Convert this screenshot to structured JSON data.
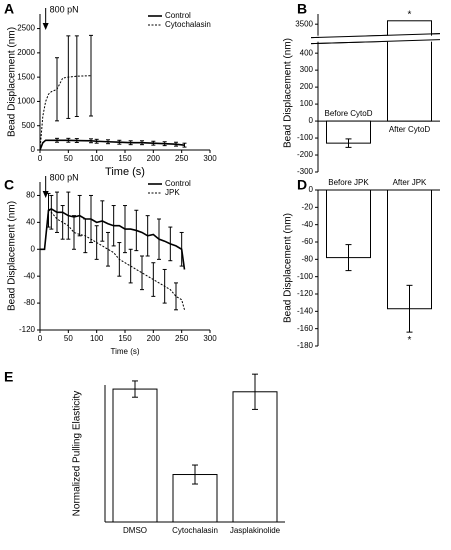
{
  "chart_data": [
    {
      "type": "line",
      "label": "A",
      "xlabel": "Time (s)",
      "ylabel": "Bead Displacement (nm)",
      "x": [
        0,
        5,
        10,
        15,
        20,
        30,
        40,
        50,
        65,
        90,
        100,
        120,
        140,
        160,
        180,
        200,
        220,
        240,
        255
      ],
      "series": [
        {
          "name": "Control",
          "color": "#000000",
          "dash": false,
          "values": [
            0,
            150,
            200,
            200,
            200,
            200,
            200,
            200,
            195,
            190,
            180,
            170,
            160,
            150,
            150,
            140,
            130,
            120,
            100
          ],
          "errors": [
            null,
            null,
            null,
            null,
            null,
            40,
            null,
            40,
            40,
            40,
            40,
            40,
            40,
            40,
            40,
            40,
            40,
            40,
            40
          ]
        },
        {
          "name": "Cytochalasin",
          "color": "#000000",
          "dash": true,
          "values": [
            0,
            700,
            1000,
            1150,
            1200,
            1250,
            1480,
            1500,
            1520,
            1530,
            null,
            null,
            null,
            null,
            null,
            null,
            null,
            null,
            null
          ],
          "errors": [
            null,
            null,
            null,
            null,
            null,
            650,
            null,
            850,
            830,
            830,
            null,
            null,
            null,
            null,
            null,
            null,
            null,
            null,
            null
          ]
        }
      ],
      "xlim": [
        0,
        300
      ],
      "xticks": [
        0,
        50,
        100,
        150,
        200,
        250,
        300
      ],
      "ylim": [
        0,
        2800
      ],
      "yticks": [
        0,
        500,
        1000,
        1500,
        2000,
        2500
      ],
      "annotation": {
        "text": "800 pN",
        "x": 10
      },
      "legend": "upper right"
    },
    {
      "type": "bar",
      "label": "B",
      "ylabel": "Bead Displacement (nm)",
      "categories": [
        "Before CytoD",
        "After CytoD"
      ],
      "values": [
        -130,
        3520
      ],
      "errors": [
        25,
        null
      ],
      "color": "#ffffff",
      "ylim": [
        -300,
        3560
      ],
      "yticks": [
        -300,
        -200,
        -100,
        0,
        100,
        200,
        300,
        400,
        3500
      ],
      "axis_break": true,
      "annotations": [
        {
          "category": "After CytoD",
          "text": "*"
        }
      ]
    },
    {
      "type": "line",
      "label": "C",
      "xlabel": "Time (s)",
      "ylabel": "Bead Displacement (nm)",
      "x": [
        0,
        8,
        15,
        20,
        30,
        40,
        50,
        60,
        70,
        80,
        90,
        100,
        110,
        120,
        130,
        140,
        150,
        160,
        170,
        180,
        190,
        200,
        210,
        220,
        230,
        240,
        250,
        255
      ],
      "series": [
        {
          "name": "Control",
          "color": "#000000",
          "dash": false,
          "values": [
            0,
            0,
            58,
            60,
            55,
            55,
            50,
            48,
            50,
            45,
            45,
            40,
            42,
            38,
            35,
            35,
            30,
            30,
            28,
            25,
            20,
            22,
            15,
            12,
            8,
            5,
            0,
            -30
          ],
          "errors": [
            null,
            null,
            25,
            null,
            30,
            null,
            35,
            null,
            30,
            null,
            35,
            null,
            30,
            null,
            30,
            null,
            35,
            null,
            30,
            null,
            30,
            null,
            30,
            null,
            25,
            null,
            25,
            null
          ]
        },
        {
          "name": "JPK",
          "color": "#000000",
          "dash": true,
          "values": [
            0,
            0,
            60,
            55,
            45,
            40,
            35,
            25,
            22,
            20,
            15,
            10,
            5,
            0,
            -5,
            -15,
            -20,
            -25,
            -30,
            -35,
            -40,
            -45,
            -50,
            -55,
            -60,
            -70,
            -75,
            -90
          ],
          "errors": [
            null,
            null,
            null,
            25,
            null,
            25,
            null,
            25,
            null,
            25,
            null,
            25,
            null,
            25,
            null,
            25,
            null,
            25,
            null,
            25,
            null,
            25,
            null,
            25,
            null,
            20,
            null,
            null
          ]
        }
      ],
      "xlim": [
        0,
        300
      ],
      "xticks": [
        0,
        50,
        100,
        150,
        200,
        250,
        300
      ],
      "ylim": [
        -120,
        100
      ],
      "yticks": [
        -120,
        -80,
        -40,
        0,
        40,
        80
      ],
      "annotation": {
        "text": "800 pN",
        "x": 10
      },
      "legend": "upper right"
    },
    {
      "type": "bar",
      "label": "D",
      "ylabel": "Bead Displacement (nm)",
      "categories": [
        "Before JPK",
        "After JPK"
      ],
      "values": [
        -78,
        -137
      ],
      "errors": [
        15,
        27
      ],
      "color": "#ffffff",
      "ylim": [
        -180,
        0
      ],
      "yticks": [
        -180,
        -160,
        -140,
        -120,
        -100,
        -80,
        -60,
        -40,
        -20,
        0
      ],
      "annotations": [
        {
          "category": "After JPK",
          "text": "*"
        }
      ]
    },
    {
      "type": "bar",
      "label": "E",
      "ylabel": "Normalized Pulling Elasticity",
      "categories": [
        "DMSO",
        "Cytochalasin",
        "Jasplakinolide"
      ],
      "values": [
        98,
        35,
        96
      ],
      "errors": [
        6,
        7,
        13
      ],
      "color": "#ffffff",
      "ylim": [
        0,
        101
      ]
    }
  ]
}
